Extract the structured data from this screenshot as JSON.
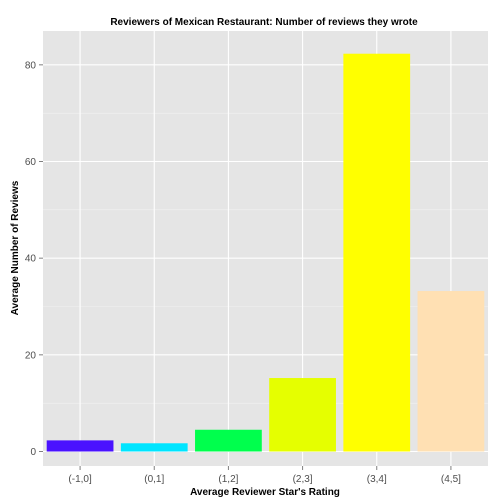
{
  "chart_data": {
    "type": "bar",
    "title": "Reviewers of Mexican Restaurant: Number of reviews they wrote",
    "xlabel": "Average Reviewer Star's Rating",
    "ylabel": "Average Number of Reviews",
    "categories": [
      "(-1,0]",
      "(0,1]",
      "(1,2]",
      "(2,3]",
      "(3,4]",
      "(4,5]"
    ],
    "values": [
      2.3,
      1.7,
      4.5,
      15.2,
      82.3,
      33.2
    ],
    "bar_colors": [
      "#4a12ff",
      "#00e5ff",
      "#00ff4d",
      "#e5ff00",
      "#ffff00",
      "#ffe0b3"
    ],
    "yticks": [
      0,
      20,
      40,
      60,
      80
    ],
    "ylim": [
      -3,
      87
    ],
    "grid": true,
    "panel_background": "#e5e5e5",
    "grid_color": "#ffffff"
  }
}
